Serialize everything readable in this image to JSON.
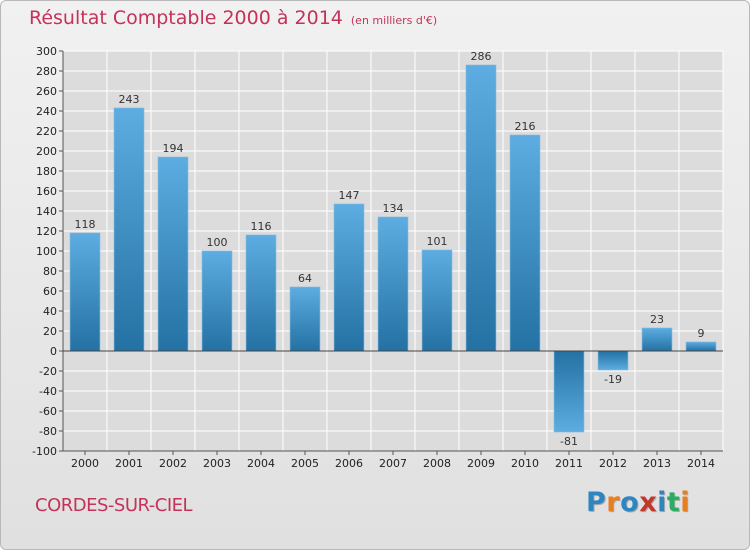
{
  "header": {
    "title": "Résultat Comptable 2000 à 2014",
    "subtitle": "(en milliers d'€)"
  },
  "footer": {
    "place": "CORDES-SUR-CIEL",
    "logo": "Proxiti",
    "logo_letters": [
      {
        "ch": "P",
        "color": "#2e86c1"
      },
      {
        "ch": "r",
        "color": "#e67e22"
      },
      {
        "ch": "o",
        "color": "#2e86c1"
      },
      {
        "ch": "x",
        "color": "#c0392b"
      },
      {
        "ch": "i",
        "color": "#2e86c1"
      },
      {
        "ch": "t",
        "color": "#27ae60"
      },
      {
        "ch": "i",
        "color": "#e67e22"
      }
    ]
  },
  "colors": {
    "bar_light": "#5dade2",
    "bar_dark": "#2471a3",
    "grid": "#ffffff",
    "accent": "#c4325a"
  },
  "chart_data": {
    "type": "bar",
    "title": "Résultat Comptable 2000 à 2014",
    "subtitle": "(en milliers d'€)",
    "categories": [
      "2000",
      "2001",
      "2002",
      "2003",
      "2004",
      "2005",
      "2006",
      "2007",
      "2008",
      "2009",
      "2010",
      "2011",
      "2012",
      "2013",
      "2014"
    ],
    "values": [
      118,
      243,
      194,
      100,
      116,
      64,
      147,
      134,
      101,
      286,
      216,
      -81,
      -19,
      23,
      9
    ],
    "labels": [
      "118",
      "243",
      "194",
      "100",
      "116",
      "64",
      "147",
      "134",
      "101",
      "286",
      "216",
      "-81",
      "-19",
      "23",
      "9"
    ],
    "ylim": [
      -100,
      300
    ],
    "ytick_step": 20,
    "grid": true,
    "xlabel": "",
    "ylabel": ""
  }
}
